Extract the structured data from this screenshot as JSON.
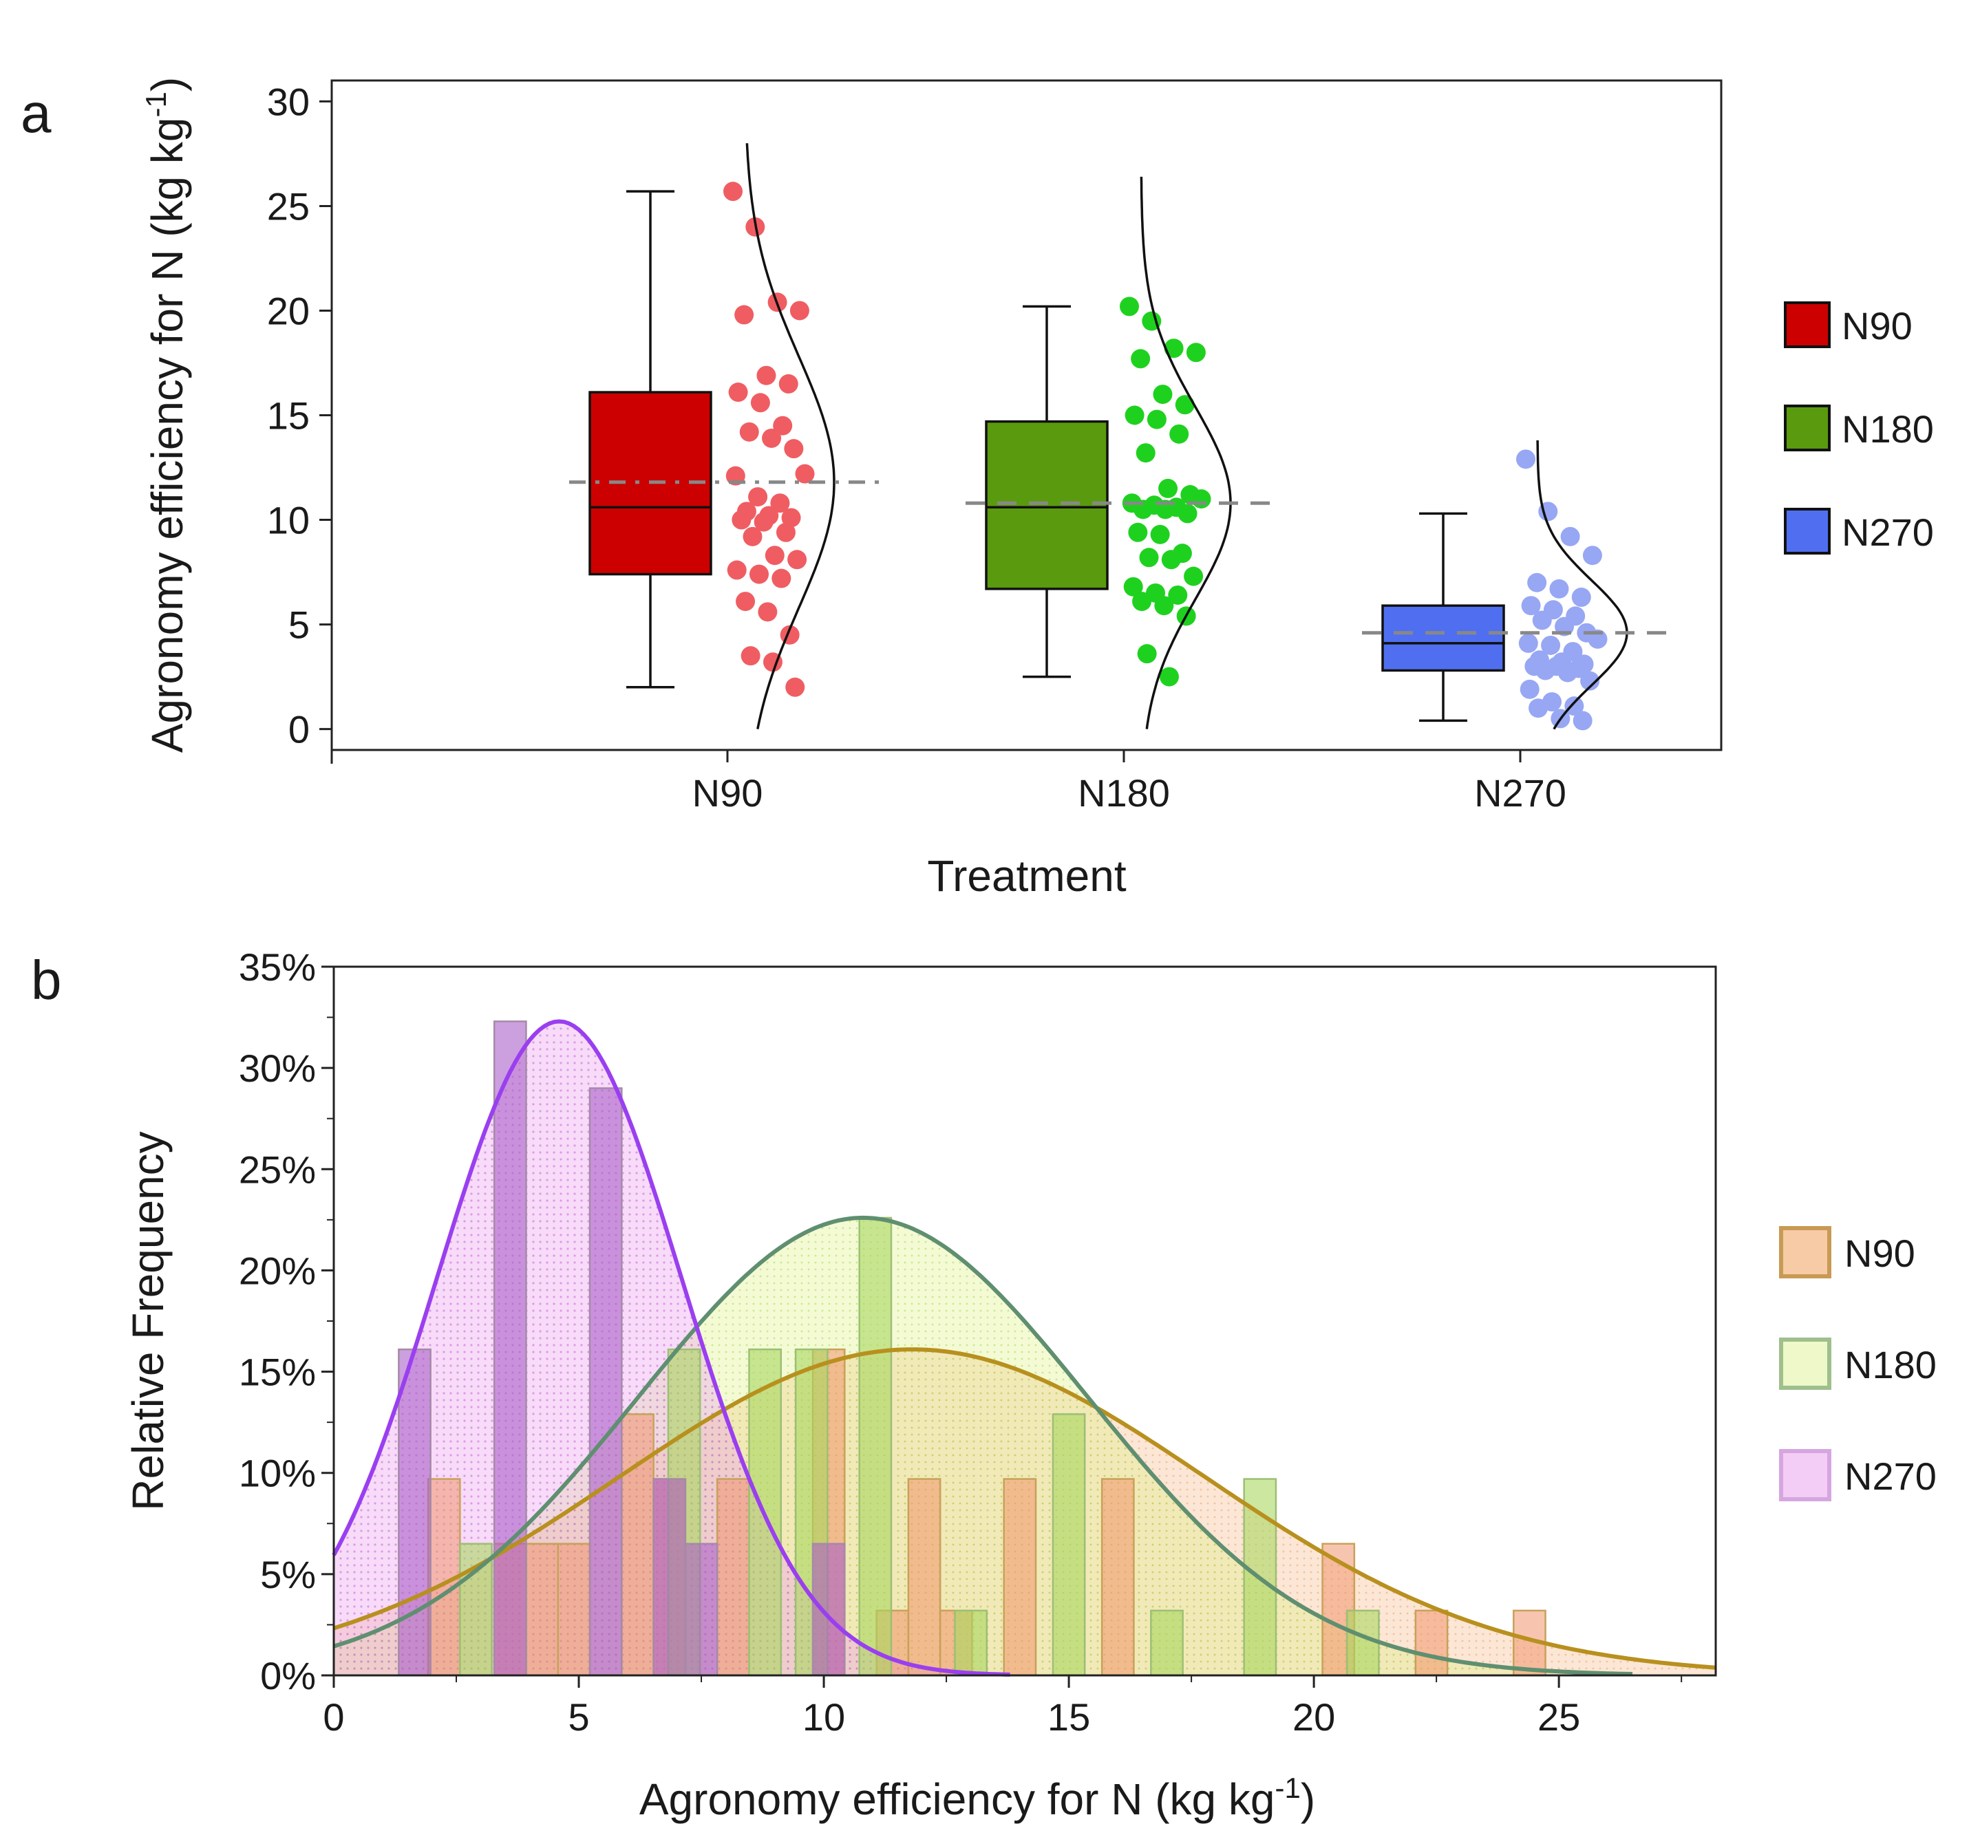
{
  "chart_data": [
    {
      "panel": "a",
      "type": "box",
      "xlabel": "Treatment",
      "ylabel": "Agronomy efficiency for N (kg kg",
      "ylabel_sup": "-1",
      "ylabel_close": ")",
      "ylim": [
        -1,
        31
      ],
      "yticks": [
        0,
        5,
        10,
        15,
        20,
        25,
        30
      ],
      "categories": [
        "N90",
        "N180",
        "N270"
      ],
      "legend": [
        "N90",
        "N180",
        "N270"
      ],
      "colors": {
        "N90": {
          "box": "#cc0000",
          "dots": "#ef5d62"
        },
        "N180": {
          "box": "#5a9a0e",
          "dots": "#1fd11f"
        },
        "N270": {
          "box": "#4f6ff0",
          "dots": "#97a7f3"
        }
      },
      "series": [
        {
          "name": "N90",
          "box": {
            "min": 2.0,
            "q1": 7.4,
            "median": 10.6,
            "q3": 16.1,
            "max": 25.7
          },
          "mean": 11.8,
          "points": [
            25.7,
            24.0,
            20.4,
            20.0,
            19.8,
            16.9,
            16.5,
            16.1,
            15.6,
            14.5,
            14.2,
            13.9,
            13.4,
            12.2,
            12.1,
            11.1,
            10.8,
            10.4,
            10.2,
            10.1,
            10.0,
            9.9,
            9.4,
            9.2,
            8.3,
            8.1,
            7.6,
            7.4,
            7.2,
            6.1,
            5.6,
            4.5,
            3.5,
            3.2,
            2.0
          ],
          "density": {
            "mu": 11.8,
            "sigma": 6.0,
            "from": 0,
            "to": 28
          }
        },
        {
          "name": "N180",
          "box": {
            "min": 2.5,
            "q1": 6.7,
            "median": 10.6,
            "q3": 14.7,
            "max": 20.2
          },
          "mean": 10.8,
          "points": [
            20.2,
            19.5,
            18.2,
            18.0,
            17.7,
            16.0,
            15.5,
            15.0,
            14.8,
            14.1,
            13.2,
            11.5,
            11.2,
            11.0,
            10.8,
            10.7,
            10.6,
            10.5,
            10.5,
            10.3,
            9.4,
            9.3,
            8.4,
            8.2,
            8.1,
            7.3,
            6.8,
            6.5,
            6.4,
            6.1,
            5.9,
            5.4,
            3.6,
            2.5
          ],
          "density": {
            "mu": 10.8,
            "sigma": 4.6,
            "from": 0,
            "to": 26.5
          }
        },
        {
          "name": "N270",
          "box": {
            "min": 0.4,
            "q1": 2.8,
            "median": 4.1,
            "q3": 5.9,
            "max": 10.3
          },
          "mean": 4.6,
          "points": [
            12.9,
            10.4,
            9.2,
            8.3,
            7.0,
            6.7,
            6.3,
            5.9,
            5.7,
            5.4,
            5.2,
            4.9,
            4.6,
            4.3,
            4.1,
            4.0,
            3.7,
            3.3,
            3.2,
            3.1,
            3.0,
            3.0,
            2.9,
            2.8,
            2.7,
            2.3,
            1.9,
            1.3,
            1.1,
            1.0,
            0.5,
            0.4
          ],
          "density": {
            "mu": 4.6,
            "sigma": 2.5,
            "from": 0,
            "to": 13.8
          }
        }
      ]
    },
    {
      "panel": "b",
      "type": "bar",
      "xlabel": "Agronomy efficiency for N (kg kg",
      "xlabel_sup": "-1",
      "xlabel_close": ")",
      "ylabel": "Relative Frequency",
      "xlim": [
        0,
        28.2
      ],
      "ylim": [
        0,
        35
      ],
      "xticks": [
        0,
        5,
        10,
        15,
        20,
        25
      ],
      "yticks": [
        0,
        5,
        10,
        15,
        20,
        25,
        30,
        35
      ],
      "ytick_suffix": "%",
      "legend": [
        "N90",
        "N180",
        "N270"
      ],
      "colors": {
        "N90": {
          "fill": "#f5b27c",
          "edge": "#c8a15a",
          "curve": "#b8901e"
        },
        "N180": {
          "fill": "#d9f07a",
          "edge": "#9cbf74",
          "curve": "#5f8f70"
        },
        "N270": {
          "fill": "#e49ae8",
          "edge": "#a68aa8",
          "curve": "#9a3ff0"
        }
      },
      "bin_width": 0.65,
      "series": [
        {
          "name": "N90",
          "bins": [
            [
              2.25,
              9.7
            ],
            [
              3.6,
              6.5
            ],
            [
              4.25,
              6.5
            ],
            [
              4.9,
              6.5
            ],
            [
              6.2,
              12.9
            ],
            [
              6.85,
              9.7
            ],
            [
              8.15,
              9.7
            ],
            [
              10.1,
              16.1
            ],
            [
              11.4,
              3.2
            ],
            [
              12.05,
              9.7
            ],
            [
              12.7,
              3.2
            ],
            [
              14.0,
              9.7
            ],
            [
              16.0,
              9.7
            ],
            [
              20.5,
              6.5
            ],
            [
              22.4,
              3.2
            ],
            [
              24.4,
              3.2
            ]
          ],
          "curve": {
            "mu": 11.8,
            "sigma": 6.0,
            "peak": 16.1,
            "from": 0,
            "to": 28.2
          }
        },
        {
          "name": "N180",
          "bins": [
            [
              2.9,
              6.5
            ],
            [
              7.15,
              16.1
            ],
            [
              8.8,
              16.1
            ],
            [
              9.75,
              16.1
            ],
            [
              11.05,
              22.6
            ],
            [
              13.0,
              3.2
            ],
            [
              15.0,
              12.9
            ],
            [
              17.0,
              3.2
            ],
            [
              18.9,
              9.7
            ],
            [
              21.0,
              3.2
            ]
          ],
          "curve": {
            "mu": 10.8,
            "sigma": 4.6,
            "peak": 22.6,
            "from": 0,
            "to": 26.5
          }
        },
        {
          "name": "N270",
          "bins": [
            [
              1.65,
              16.1
            ],
            [
              3.6,
              32.3
            ],
            [
              5.55,
              29.0
            ],
            [
              6.85,
              9.7
            ],
            [
              7.5,
              6.5
            ],
            [
              10.1,
              6.5
            ]
          ],
          "curve": {
            "mu": 4.6,
            "sigma": 2.5,
            "peak": 32.3,
            "from": 0,
            "to": 13.8
          }
        }
      ]
    }
  ]
}
